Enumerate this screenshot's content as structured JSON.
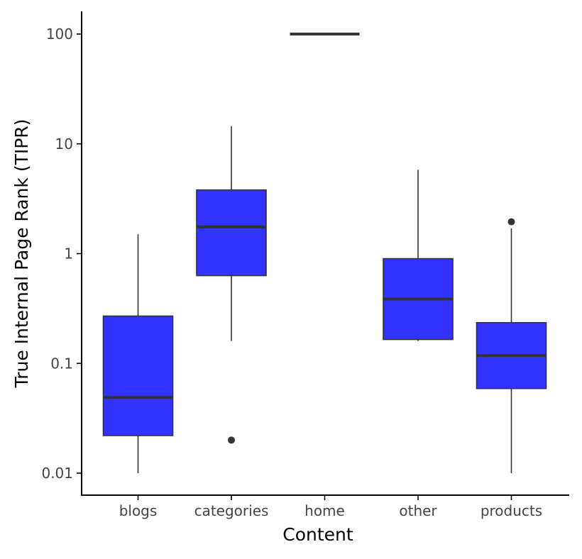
{
  "chart_data": {
    "type": "boxplot",
    "xlabel": "Content",
    "ylabel": "True Internal Page Rank (TIPR)",
    "y_scale": "log10",
    "ylim": [
      0.0075,
      160
    ],
    "y_ticks": [
      {
        "value": 0.01,
        "label": "0.01"
      },
      {
        "value": 0.1,
        "label": "0.1"
      },
      {
        "value": 1,
        "label": "1"
      },
      {
        "value": 10,
        "label": "10"
      },
      {
        "value": 100,
        "label": "100"
      }
    ],
    "fill_color": "#3333ff",
    "categories": [
      "blogs",
      "categories",
      "home",
      "other",
      "products"
    ],
    "boxes": [
      {
        "category": "blogs",
        "min": 0.01,
        "q1": 0.022,
        "median": 0.049,
        "q3": 0.27,
        "max": 1.5,
        "outliers": []
      },
      {
        "category": "categories",
        "min": 0.16,
        "q1": 0.63,
        "median": 1.75,
        "q3": 3.8,
        "max": 14.5,
        "outliers": [
          0.02
        ]
      },
      {
        "category": "home",
        "min": 100,
        "q1": 100,
        "median": 100,
        "q3": 100,
        "max": 100,
        "outliers": []
      },
      {
        "category": "other",
        "min": 0.16,
        "q1": 0.165,
        "median": 0.385,
        "q3": 0.9,
        "max": 5.8,
        "outliers": []
      },
      {
        "category": "products",
        "min": 0.01,
        "q1": 0.059,
        "median": 0.118,
        "q3": 0.235,
        "max": 1.7,
        "outliers": [
          1.95
        ]
      }
    ]
  }
}
